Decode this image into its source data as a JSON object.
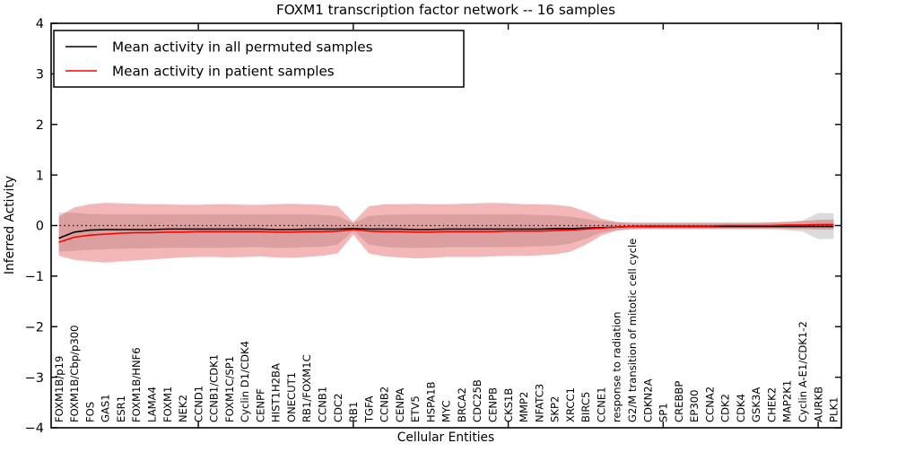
{
  "chart_data": {
    "type": "line",
    "title": "FOXM1 transcription factor network -- 16 samples",
    "xlabel": "Cellular Entities",
    "ylabel": "Inferred Activity",
    "ylim": [
      -4,
      4
    ],
    "ytick_labels": [
      "4",
      "3",
      "2",
      "1",
      "0",
      "−1",
      "−2",
      "−3",
      "−4"
    ],
    "ytick_values": [
      4,
      3,
      2,
      1,
      0,
      -1,
      -2,
      -3,
      -4
    ],
    "grid": false,
    "zero_line": {
      "style": "dotted",
      "color": "#000000",
      "y": 0
    },
    "legend_position": "upper-left",
    "legend_entries": [
      {
        "label": "Mean activity in all permuted samples",
        "color": "#000000"
      },
      {
        "label": "Mean activity in patient samples",
        "color": "#ff0000"
      }
    ],
    "categories": [
      "FOXM1B/p19",
      "FOXM1B/Cbp/p300",
      "FOS",
      "GAS1",
      "ESR1",
      "FOXM1B/HNF6",
      "LAMA4",
      "FOXM1",
      "NEK2",
      "CCND1",
      "CCNB1/CDK1",
      "FOXM1C/SP1",
      "Cyclin D1/CDK4",
      "CENPF",
      "HIST1H2BA",
      "ONECUT1",
      "RB1/FOXM1C",
      "CCNB1",
      "CDC2",
      "RB1",
      "TGFA",
      "CCNB2",
      "CENPA",
      "ETV5",
      "HSPA1B",
      "MYC",
      "BRCA2",
      "CDC25B",
      "CENPB",
      "CKS1B",
      "MMP2",
      "NFATC3",
      "SKP2",
      "XRCC1",
      "BIRC5",
      "CCNE1",
      "response to radiation",
      "G2/M transition of mitotic cell cycle",
      "CDKN2A",
      "SP1",
      "CREBBP",
      "EP300",
      "CCNA2",
      "CDK2",
      "CDK4",
      "GSK3A",
      "CHEK2",
      "MAP2K1",
      "Cyclin A-E1/CDK1-2",
      "AURKB",
      "PLK1"
    ],
    "series": [
      {
        "name": "permuted_mean",
        "color": "#000000",
        "values": [
          -0.25,
          -0.13,
          -0.09,
          -0.08,
          -0.08,
          -0.08,
          -0.08,
          -0.07,
          -0.07,
          -0.07,
          -0.07,
          -0.07,
          -0.07,
          -0.07,
          -0.08,
          -0.08,
          -0.07,
          -0.07,
          -0.07,
          -0.06,
          -0.07,
          -0.07,
          -0.07,
          -0.08,
          -0.08,
          -0.07,
          -0.07,
          -0.07,
          -0.07,
          -0.07,
          -0.07,
          -0.07,
          -0.06,
          -0.06,
          -0.05,
          -0.04,
          -0.03,
          -0.02,
          -0.02,
          -0.02,
          -0.02,
          -0.02,
          -0.02,
          -0.02,
          -0.02,
          -0.02,
          -0.02,
          -0.02,
          -0.02,
          -0.02,
          -0.02
        ]
      },
      {
        "name": "patient_mean",
        "color": "#ff0000",
        "values": [
          -0.33,
          -0.23,
          -0.19,
          -0.17,
          -0.15,
          -0.14,
          -0.14,
          -0.13,
          -0.13,
          -0.12,
          -0.12,
          -0.12,
          -0.12,
          -0.12,
          -0.13,
          -0.13,
          -0.12,
          -0.12,
          -0.11,
          -0.08,
          -0.11,
          -0.12,
          -0.12,
          -0.13,
          -0.13,
          -0.12,
          -0.12,
          -0.12,
          -0.12,
          -0.11,
          -0.11,
          -0.11,
          -0.1,
          -0.09,
          -0.07,
          -0.05,
          -0.03,
          -0.02,
          -0.01,
          -0.01,
          -0.01,
          -0.01,
          -0.01,
          0.0,
          0.0,
          0.0,
          0.0,
          0.01,
          0.01,
          0.02,
          0.02
        ]
      }
    ],
    "bands": [
      {
        "name": "permuted_band",
        "fill": "#000000",
        "opacity": 0.14,
        "upper": [
          0.26,
          0.25,
          0.23,
          0.22,
          0.22,
          0.22,
          0.22,
          0.22,
          0.22,
          0.22,
          0.22,
          0.22,
          0.22,
          0.22,
          0.22,
          0.22,
          0.22,
          0.21,
          0.19,
          0.05,
          0.19,
          0.21,
          0.22,
          0.22,
          0.22,
          0.22,
          0.22,
          0.22,
          0.22,
          0.22,
          0.22,
          0.21,
          0.2,
          0.18,
          0.13,
          0.09,
          0.07,
          0.07,
          0.07,
          0.07,
          0.07,
          0.07,
          0.07,
          0.07,
          0.07,
          0.07,
          0.07,
          0.08,
          0.1,
          0.25,
          0.24
        ],
        "lower": [
          -0.52,
          -0.5,
          -0.48,
          -0.47,
          -0.46,
          -0.45,
          -0.45,
          -0.44,
          -0.44,
          -0.44,
          -0.44,
          -0.44,
          -0.43,
          -0.43,
          -0.44,
          -0.44,
          -0.43,
          -0.42,
          -0.38,
          -0.1,
          -0.38,
          -0.42,
          -0.44,
          -0.44,
          -0.44,
          -0.43,
          -0.43,
          -0.43,
          -0.43,
          -0.42,
          -0.42,
          -0.41,
          -0.4,
          -0.36,
          -0.26,
          -0.14,
          -0.09,
          -0.08,
          -0.08,
          -0.08,
          -0.08,
          -0.08,
          -0.08,
          -0.08,
          -0.08,
          -0.08,
          -0.08,
          -0.09,
          -0.12,
          -0.27,
          -0.26
        ]
      },
      {
        "name": "patient_band",
        "fill": "#e03030",
        "opacity": 0.35,
        "upper": [
          0.18,
          0.36,
          0.42,
          0.45,
          0.44,
          0.43,
          0.42,
          0.42,
          0.41,
          0.41,
          0.42,
          0.42,
          0.41,
          0.41,
          0.42,
          0.43,
          0.42,
          0.41,
          0.38,
          0.07,
          0.38,
          0.42,
          0.42,
          0.43,
          0.42,
          0.42,
          0.43,
          0.44,
          0.45,
          0.44,
          0.42,
          0.42,
          0.41,
          0.38,
          0.28,
          0.14,
          0.07,
          0.05,
          0.05,
          0.05,
          0.05,
          0.05,
          0.05,
          0.05,
          0.05,
          0.05,
          0.06,
          0.07,
          0.09,
          0.11,
          0.12
        ],
        "lower": [
          -0.6,
          -0.68,
          -0.71,
          -0.73,
          -0.71,
          -0.69,
          -0.67,
          -0.65,
          -0.63,
          -0.62,
          -0.62,
          -0.63,
          -0.62,
          -0.61,
          -0.63,
          -0.64,
          -0.62,
          -0.6,
          -0.55,
          -0.18,
          -0.55,
          -0.61,
          -0.63,
          -0.65,
          -0.64,
          -0.62,
          -0.62,
          -0.62,
          -0.61,
          -0.6,
          -0.6,
          -0.59,
          -0.57,
          -0.52,
          -0.38,
          -0.2,
          -0.1,
          -0.07,
          -0.06,
          -0.06,
          -0.06,
          -0.06,
          -0.06,
          -0.06,
          -0.06,
          -0.06,
          -0.06,
          -0.07,
          -0.07,
          -0.08,
          -0.08
        ]
      }
    ],
    "styles": {
      "axes_edge_color": "#000000",
      "background_color": "#ffffff",
      "permuted_line_color": "#000000",
      "patient_line_color": "#ff0000"
    }
  }
}
